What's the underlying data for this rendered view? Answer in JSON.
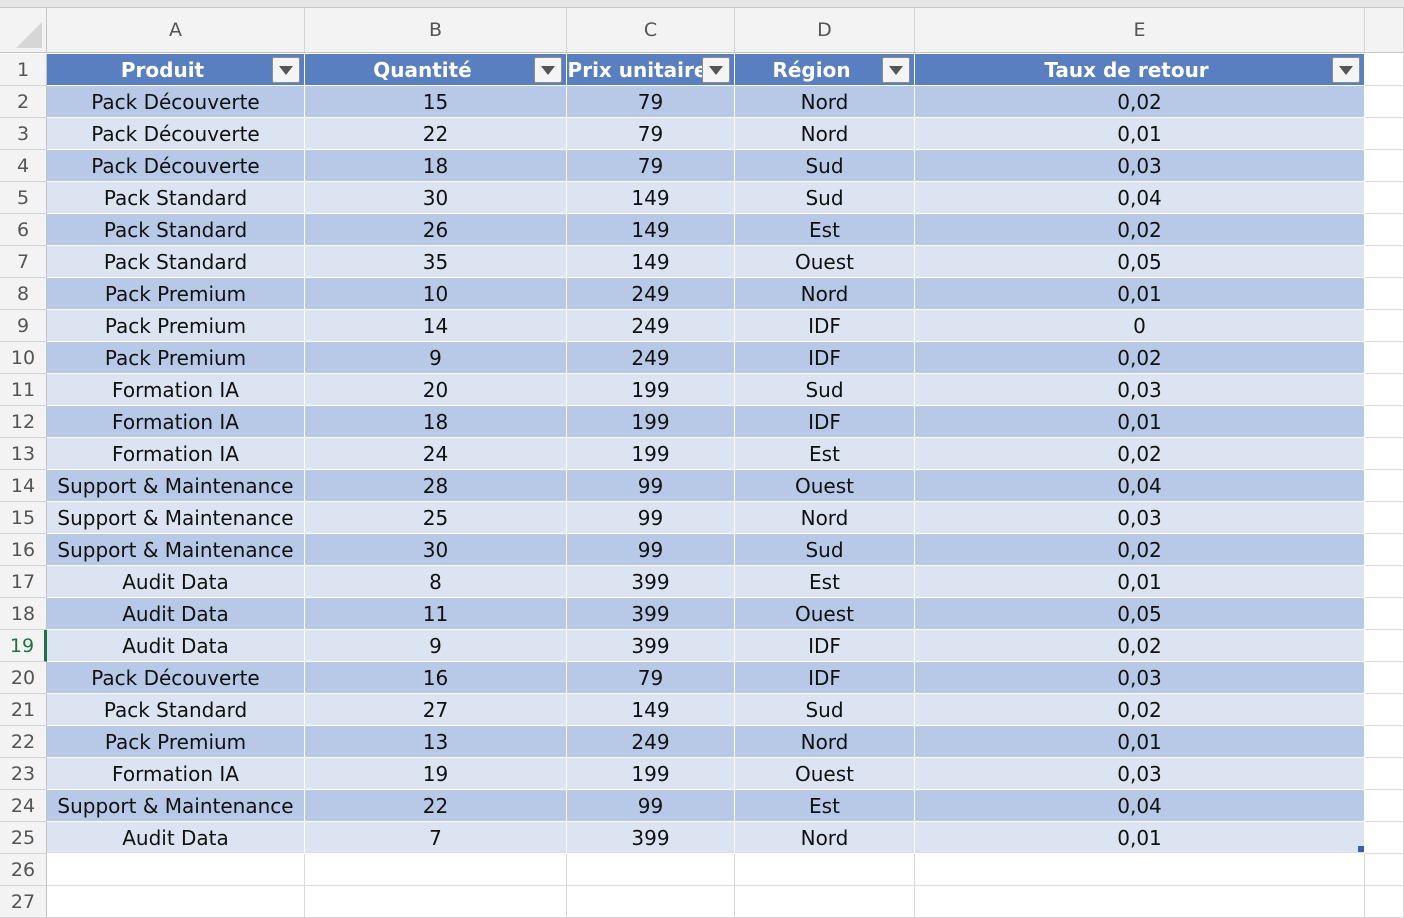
{
  "sheet": {
    "columns": [
      "A",
      "B",
      "C",
      "D",
      "E"
    ],
    "row_numbers": [
      1,
      2,
      3,
      4,
      5,
      6,
      7,
      8,
      9,
      10,
      11,
      12,
      13,
      14,
      15,
      16,
      17,
      18,
      19,
      20,
      21,
      22,
      23,
      24,
      25,
      26,
      27
    ],
    "table": {
      "header": [
        "Produit",
        "Quantité",
        "Prix unitaire",
        "Région",
        "Taux de retour"
      ],
      "rows": [
        [
          "Pack Découverte",
          "15",
          "79",
          "Nord",
          "0,02"
        ],
        [
          "Pack Découverte",
          "22",
          "79",
          "Nord",
          "0,01"
        ],
        [
          "Pack Découverte",
          "18",
          "79",
          "Sud",
          "0,03"
        ],
        [
          "Pack Standard",
          "30",
          "149",
          "Sud",
          "0,04"
        ],
        [
          "Pack Standard",
          "26",
          "149",
          "Est",
          "0,02"
        ],
        [
          "Pack Standard",
          "35",
          "149",
          "Ouest",
          "0,05"
        ],
        [
          "Pack Premium",
          "10",
          "249",
          "Nord",
          "0,01"
        ],
        [
          "Pack Premium",
          "14",
          "249",
          "IDF",
          "0"
        ],
        [
          "Pack Premium",
          "9",
          "249",
          "IDF",
          "0,02"
        ],
        [
          "Formation IA",
          "20",
          "199",
          "Sud",
          "0,03"
        ],
        [
          "Formation IA",
          "18",
          "199",
          "IDF",
          "0,01"
        ],
        [
          "Formation IA",
          "24",
          "199",
          "Est",
          "0,02"
        ],
        [
          "Support & Maintenance",
          "28",
          "99",
          "Ouest",
          "0,04"
        ],
        [
          "Support & Maintenance",
          "25",
          "99",
          "Nord",
          "0,03"
        ],
        [
          "Support & Maintenance",
          "30",
          "99",
          "Sud",
          "0,02"
        ],
        [
          "Audit Data",
          "8",
          "399",
          "Est",
          "0,01"
        ],
        [
          "Audit Data",
          "11",
          "399",
          "Ouest",
          "0,05"
        ],
        [
          "Audit Data",
          "9",
          "399",
          "IDF",
          "0,02"
        ],
        [
          "Pack Découverte",
          "16",
          "79",
          "IDF",
          "0,03"
        ],
        [
          "Pack Standard",
          "27",
          "149",
          "Sud",
          "0,02"
        ],
        [
          "Pack Premium",
          "13",
          "249",
          "Nord",
          "0,01"
        ],
        [
          "Formation IA",
          "19",
          "199",
          "Ouest",
          "0,03"
        ],
        [
          "Support & Maintenance",
          "22",
          "99",
          "Est",
          "0,04"
        ],
        [
          "Audit Data",
          "7",
          "399",
          "Nord",
          "0,01"
        ]
      ]
    }
  }
}
